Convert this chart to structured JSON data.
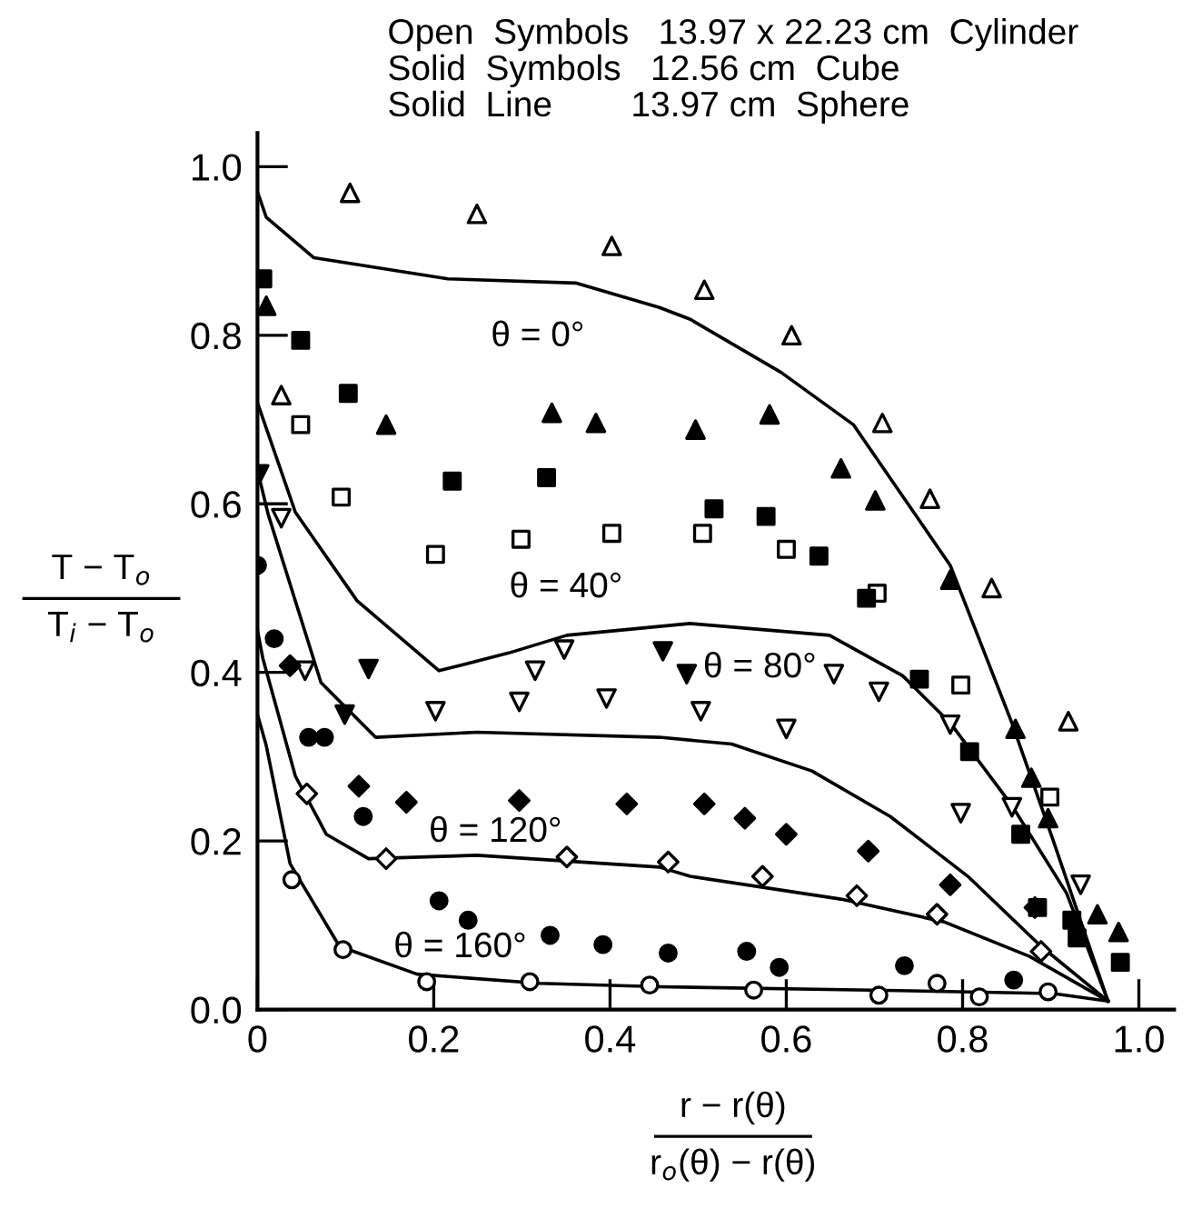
{
  "chart_data": {
    "type": "scatter",
    "xlabel": "r − r(θ)\nr$_{o}$(θ) − r(θ)",
    "ylabel": "T − T$_{o}$\nT$_{i}$ − T$_{o}$",
    "annotations": [
      "Open  Symbols   13.97 x 22.23 cm  Cylinder",
      "Solid  Symbols   12.56 cm  Cube",
      "Solid  Line        13.97 cm  Sphere",
      "θ = 0°",
      "θ = 40°",
      "θ = 80°",
      "θ = 120°",
      "θ = 160°"
    ],
    "xlim": [
      0,
      1.04
    ],
    "ylim": [
      0,
      1.04
    ],
    "xticks": [
      0,
      0.2,
      0.4,
      0.6,
      0.8,
      {
        "value": 1.0,
        "label": "1.0"
      }
    ],
    "yticks": [
      {
        "value": 0,
        "label": "0.0"
      },
      0.2,
      0.4,
      0.6,
      0.8,
      {
        "value": 1.0,
        "label": "1.0"
      }
    ],
    "grid": false,
    "legend": false,
    "series": [
      {
        "type": "line",
        "color": "#000000",
        "marker": "none",
        "x": [
          0,
          0.01,
          0.064,
          0.216,
          0.361,
          0.456,
          0.491,
          0.594,
          0.676,
          0.786,
          0.856,
          0.903,
          0.965
        ],
        "values": [
          0.97,
          0.94,
          0.892,
          0.867,
          0.862,
          0.833,
          0.819,
          0.756,
          0.694,
          0.527,
          0.34,
          0.2,
          0.01
        ]
      },
      {
        "type": "line",
        "color": "#000000",
        "marker": "none",
        "x": [
          0,
          0.043,
          0.113,
          0.206,
          0.285,
          0.351,
          0.491,
          0.649,
          0.732,
          0.786,
          0.856,
          0.918,
          0.965
        ],
        "values": [
          0.72,
          0.59,
          0.485,
          0.402,
          0.423,
          0.444,
          0.458,
          0.444,
          0.396,
          0.34,
          0.242,
          0.138,
          0.01
        ]
      },
      {
        "type": "line",
        "color": "#000000",
        "marker": "none",
        "x": [
          0,
          0.012,
          0.072,
          0.134,
          0.249,
          0.456,
          0.538,
          0.629,
          0.718,
          0.806,
          0.889,
          0.965
        ],
        "values": [
          0.64,
          0.588,
          0.388,
          0.323,
          0.329,
          0.323,
          0.315,
          0.283,
          0.229,
          0.158,
          0.075,
          0.01
        ]
      },
      {
        "type": "line",
        "color": "#000000",
        "marker": "none",
        "x": [
          0,
          0.006,
          0.043,
          0.078,
          0.126,
          0.249,
          0.456,
          0.491,
          0.662,
          0.779,
          0.876,
          0.965
        ],
        "values": [
          0.45,
          0.417,
          0.277,
          0.208,
          0.179,
          0.183,
          0.169,
          0.158,
          0.131,
          0.104,
          0.063,
          0.01
        ]
      },
      {
        "type": "line",
        "color": "#000000",
        "marker": "none",
        "x": [
          0,
          0.01,
          0.037,
          0.093,
          0.181,
          0.32,
          0.456,
          0.697,
          0.903,
          0.965
        ],
        "values": [
          0.35,
          0.313,
          0.173,
          0.075,
          0.042,
          0.031,
          0.027,
          0.023,
          0.019,
          0.01
        ]
      },
      {
        "color": "#ffffff",
        "marker": "triangle",
        "x": [
          0.027,
          0.105,
          0.249,
          0.402,
          0.507,
          0.606,
          0.709,
          0.763,
          0.833,
          0.92
        ],
        "values": [
          0.729,
          0.969,
          0.944,
          0.906,
          0.854,
          0.8,
          0.696,
          0.606,
          0.5,
          0.342
        ]
      },
      {
        "color": "#000000",
        "marker": "triangle",
        "x": [
          0.01,
          0.146,
          0.334,
          0.384,
          0.497,
          0.581,
          0.662,
          0.701,
          0.786,
          0.86,
          0.878,
          0.897,
          0.953,
          0.977
        ],
        "values": [
          0.835,
          0.694,
          0.708,
          0.696,
          0.688,
          0.706,
          0.642,
          0.604,
          0.51,
          0.333,
          0.275,
          0.227,
          0.113,
          0.092
        ]
      },
      {
        "color": "#ffffff",
        "marker": "square",
        "x": [
          0.049,
          0.095,
          0.202,
          0.299,
          0.402,
          0.505,
          0.6,
          0.703,
          0.798,
          0.899
        ],
        "values": [
          0.694,
          0.608,
          0.54,
          0.558,
          0.565,
          0.565,
          0.546,
          0.494,
          0.385,
          0.252
        ]
      },
      {
        "color": "#000000",
        "marker": "square",
        "x": [
          0.006,
          0.049,
          0.103,
          0.221,
          0.328,
          0.518,
          0.577,
          0.637,
          0.691,
          0.751,
          0.808,
          0.866,
          0.885,
          0.924,
          0.93,
          0.979
        ],
        "values": [
          0.867,
          0.794,
          0.731,
          0.627,
          0.631,
          0.594,
          0.585,
          0.538,
          0.488,
          0.392,
          0.306,
          0.208,
          0.121,
          0.106,
          0.085,
          0.056
        ]
      },
      {
        "color": "#ffffff",
        "marker": "triangle-down",
        "x": [
          0.027,
          0.054,
          0.202,
          0.297,
          0.315,
          0.348,
          0.396,
          0.503,
          0.6,
          0.654,
          0.705,
          0.786,
          0.798,
          0.856,
          0.934
        ],
        "values": [
          0.583,
          0.402,
          0.354,
          0.365,
          0.402,
          0.427,
          0.369,
          0.354,
          0.333,
          0.398,
          0.377,
          0.338,
          0.233,
          0.24,
          0.148
        ]
      },
      {
        "color": "#000000",
        "marker": "triangle-down",
        "x": [
          0.002,
          0.099,
          0.126,
          0.46,
          0.487
        ],
        "values": [
          0.635,
          0.35,
          0.404,
          0.425,
          0.398
        ]
      },
      {
        "color": "#ffffff",
        "marker": "diamond",
        "x": [
          0.056,
          0.146,
          0.351,
          0.466,
          0.573,
          0.68,
          0.771,
          0.889
        ],
        "values": [
          0.256,
          0.179,
          0.181,
          0.175,
          0.158,
          0.135,
          0.113,
          0.069
        ]
      },
      {
        "color": "#000000",
        "marker": "diamond",
        "x": [
          0.037,
          0.115,
          0.169,
          0.297,
          0.419,
          0.507,
          0.553,
          0.6,
          0.693,
          0.786,
          0.882
        ],
        "values": [
          0.408,
          0.265,
          0.246,
          0.248,
          0.244,
          0.244,
          0.227,
          0.208,
          0.188,
          0.148,
          0.121
        ]
      },
      {
        "color": "#ffffff",
        "marker": "circle",
        "x": [
          0.039,
          0.097,
          0.192,
          0.309,
          0.445,
          0.563,
          0.705,
          0.771,
          0.819,
          0.897
        ],
        "values": [
          0.154,
          0.071,
          0.033,
          0.033,
          0.029,
          0.023,
          0.017,
          0.031,
          0.015,
          0.021
        ]
      },
      {
        "color": "#000000",
        "marker": "circle",
        "x": [
          0.0,
          0.019,
          0.058,
          0.076,
          0.12,
          0.206,
          0.239,
          0.332,
          0.392,
          0.466,
          0.555,
          0.592,
          0.734,
          0.858
        ],
        "values": [
          0.527,
          0.44,
          0.323,
          0.323,
          0.229,
          0.129,
          0.106,
          0.088,
          0.077,
          0.067,
          0.069,
          0.05,
          0.052,
          0.035
        ]
      }
    ]
  }
}
